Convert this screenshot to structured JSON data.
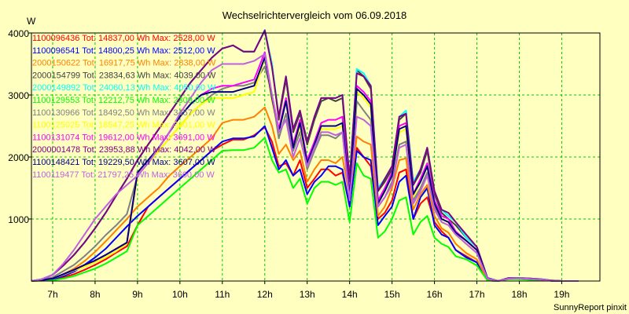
{
  "chart_data": {
    "type": "line",
    "title": "Wechselrichtervergleich vom 06.09.2018",
    "ylabel": "W",
    "xlabel": "",
    "footer": "SunnyReport pinxit",
    "x_tick_labels": [
      "7h",
      "8h",
      "9h",
      "10h",
      "11h",
      "12h",
      "13h",
      "14h",
      "15h",
      "16h",
      "17h",
      "18h",
      "19h"
    ],
    "y_tick_labels": [
      "1000",
      "2000",
      "3000",
      "4000"
    ],
    "x_ticks": [
      7,
      8,
      9,
      10,
      11,
      12,
      13,
      14,
      15,
      16,
      17,
      18,
      19
    ],
    "y_ticks": [
      1000,
      2000,
      3000,
      4000
    ],
    "xlim": [
      6.5,
      19.9
    ],
    "ylim": [
      0,
      4000
    ],
    "grid": true,
    "legend_position": "top-left",
    "colors": {
      "background": "#FFFFC0",
      "plot_background": "#FFFFC0",
      "grid": "#00CC00"
    },
    "x": [
      6.5,
      6.75,
      7,
      7.25,
      7.5,
      7.75,
      8,
      8.25,
      8.5,
      8.75,
      9,
      9.25,
      9.5,
      9.75,
      10,
      10.25,
      10.5,
      10.75,
      11,
      11.25,
      11.5,
      11.75,
      12,
      12.17,
      12.33,
      12.5,
      12.67,
      12.83,
      13,
      13.17,
      13.33,
      13.5,
      13.67,
      13.83,
      14,
      14.17,
      14.33,
      14.5,
      14.67,
      14.83,
      15,
      15.17,
      15.33,
      15.5,
      15.67,
      15.83,
      16,
      16.17,
      16.33,
      16.5,
      16.75,
      17,
      17.25,
      17.5,
      17.75,
      18,
      18.25,
      18.5,
      18.75,
      19,
      19.25,
      19.4
    ],
    "series": [
      {
        "legend": "1100096436 Tot: 14837,00 Wh Max: 2528,00 W",
        "color": "#FF0000",
        "values": [
          0,
          10,
          20,
          60,
          110,
          180,
          260,
          350,
          460,
          560,
          900,
          1200,
          1350,
          1500,
          1650,
          1800,
          1950,
          2100,
          2200,
          2280,
          2280,
          2350,
          2480,
          2250,
          1850,
          1900,
          1700,
          1950,
          1500,
          1650,
          1800,
          1800,
          1700,
          1750,
          1200,
          2150,
          2000,
          1850,
          1000,
          1100,
          1300,
          1750,
          1800,
          1000,
          1250,
          1350,
          950,
          800,
          700,
          500,
          400,
          300,
          20,
          0,
          40,
          40,
          30,
          20,
          5,
          0,
          0,
          0
        ]
      },
      {
        "legend": "1100096541 Tot: 14800,25 Wh Max: 2512,00 W",
        "color": "#0000FF",
        "values": [
          0,
          10,
          30,
          80,
          150,
          260,
          380,
          520,
          700,
          880,
          1050,
          1200,
          1350,
          1500,
          1650,
          1800,
          1950,
          2100,
          2250,
          2300,
          2300,
          2330,
          2500,
          2150,
          1800,
          1950,
          1700,
          1800,
          1400,
          1600,
          1700,
          1850,
          1850,
          1800,
          1200,
          2100,
          2000,
          1950,
          900,
          1050,
          1200,
          1600,
          1700,
          1000,
          1350,
          1500,
          900,
          750,
          700,
          500,
          380,
          300,
          10,
          0,
          40,
          40,
          30,
          20,
          5,
          0,
          0,
          0
        ]
      },
      {
        "legend": "2000150622 Tot: 16917,75 Wh Max: 2838,00 W",
        "color": "#FF8000",
        "values": [
          0,
          15,
          40,
          110,
          200,
          320,
          470,
          640,
          820,
          1000,
          1200,
          1350,
          1500,
          1700,
          1850,
          2000,
          2150,
          2300,
          2550,
          2600,
          2600,
          2650,
          2800,
          2500,
          2050,
          2200,
          1950,
          2100,
          1600,
          1800,
          1950,
          1950,
          1900,
          2000,
          1350,
          2330,
          2250,
          2200,
          1050,
          1200,
          1500,
          1950,
          1980,
          1150,
          1400,
          1550,
          1050,
          850,
          780,
          600,
          450,
          350,
          20,
          0,
          40,
          45,
          35,
          25,
          5,
          0,
          0,
          0
        ]
      },
      {
        "legend": "2000154799 Tot: 23834,63 Wh Max: 4039,00 W",
        "color": "#404040",
        "values": [
          0,
          30,
          100,
          250,
          420,
          620,
          850,
          1100,
          1380,
          1650,
          1950,
          2200,
          2450,
          2700,
          2950,
          3200,
          3400,
          3600,
          3750,
          3800,
          3700,
          3700,
          4040,
          3500,
          2600,
          3250,
          2400,
          2700,
          2200,
          2600,
          2900,
          2950,
          2900,
          2950,
          1600,
          3400,
          3300,
          3100,
          1450,
          1600,
          1800,
          2600,
          2700,
          1550,
          1750,
          2100,
          1400,
          1100,
          1000,
          900,
          700,
          550,
          50,
          0,
          50,
          50,
          40,
          30,
          10,
          0,
          0,
          0
        ]
      },
      {
        "legend": "2000149892 Tot: 24060,13 Wh Max: 4050,00 W",
        "color": "#00FFFF",
        "values": [
          0,
          30,
          100,
          250,
          420,
          620,
          850,
          1100,
          1380,
          1650,
          1950,
          2200,
          2450,
          2700,
          2950,
          3200,
          3400,
          3600,
          3750,
          3800,
          3700,
          3700,
          4050,
          3500,
          2650,
          3300,
          2450,
          2750,
          2250,
          2650,
          2950,
          2950,
          2950,
          3000,
          1650,
          3420,
          3350,
          3150,
          1500,
          1650,
          1850,
          2650,
          2750,
          1600,
          1800,
          2150,
          1450,
          1150,
          1050,
          950,
          700,
          550,
          50,
          0,
          50,
          50,
          40,
          30,
          10,
          0,
          0,
          0
        ]
      },
      {
        "legend": "1100129553 Tot: 12212,75 Wh Max: 2309,00 W",
        "color": "#00FF00",
        "values": [
          0,
          5,
          10,
          40,
          80,
          140,
          200,
          280,
          380,
          480,
          900,
          1050,
          1200,
          1350,
          1500,
          1650,
          1800,
          1950,
          2100,
          2110,
          2110,
          2150,
          2310,
          1950,
          1750,
          1800,
          1500,
          1650,
          1250,
          1500,
          1600,
          1600,
          1550,
          1600,
          950,
          1900,
          1700,
          1650,
          700,
          800,
          1000,
          1300,
          1350,
          750,
          950,
          1050,
          700,
          600,
          550,
          400,
          350,
          250,
          10,
          0,
          30,
          30,
          20,
          15,
          5,
          0,
          0,
          0
        ]
      },
      {
        "legend": "1100130966 Tot: 18492,50 Wh Max: 3457,00 W",
        "color": "#808080",
        "values": [
          0,
          20,
          60,
          160,
          260,
          400,
          560,
          740,
          900,
          1080,
          1700,
          1900,
          2100,
          2300,
          2500,
          2700,
          2850,
          3000,
          3100,
          3150,
          3150,
          3200,
          3460,
          3000,
          2300,
          2700,
          2100,
          2400,
          1800,
          2100,
          2350,
          2350,
          2300,
          2400,
          1300,
          2900,
          2750,
          2600,
          1200,
          1350,
          1600,
          2200,
          2250,
          1300,
          1500,
          1750,
          1200,
          950,
          900,
          750,
          600,
          450,
          40,
          0,
          40,
          45,
          35,
          25,
          5,
          0,
          0,
          0
        ]
      },
      {
        "legend": "1100125025 Tot: 18547,25 Wh Max: 3601,00 W",
        "color": "#FFFF00",
        "values": [
          0,
          15,
          40,
          100,
          170,
          230,
          300,
          380,
          480,
          600,
          1700,
          1900,
          2100,
          2300,
          2500,
          2700,
          2850,
          2950,
          2950,
          2950,
          3000,
          3050,
          3600,
          2900,
          2400,
          2900,
          2150,
          2500,
          1850,
          2150,
          2450,
          2450,
          2450,
          2500,
          1350,
          3050,
          2950,
          2800,
          1250,
          1450,
          1700,
          2400,
          2450,
          1350,
          1600,
          1850,
          1250,
          1000,
          950,
          780,
          650,
          500,
          40,
          0,
          40,
          45,
          35,
          25,
          5,
          0,
          0,
          0
        ]
      },
      {
        "legend": "1100131074 Tot: 19612,00 Wh Max: 3691,00 W",
        "color": "#FF00FF",
        "values": [
          0,
          15,
          40,
          110,
          180,
          260,
          330,
          420,
          520,
          620,
          1750,
          1950,
          2150,
          2400,
          2650,
          2850,
          3000,
          3100,
          3150,
          3150,
          3200,
          3250,
          3690,
          3000,
          2450,
          2950,
          2200,
          2600,
          1950,
          2250,
          2550,
          2600,
          2600,
          2650,
          1400,
          3150,
          3050,
          2900,
          1300,
          1500,
          1750,
          2500,
          2550,
          1400,
          1650,
          1900,
          1300,
          1050,
          1000,
          800,
          650,
          500,
          40,
          0,
          40,
          45,
          35,
          25,
          5,
          0,
          0,
          0
        ]
      },
      {
        "legend": "2000001478 Tot: 23953,88 Wh Max: 4042,00 W",
        "color": "#800080",
        "values": [
          0,
          30,
          100,
          250,
          420,
          620,
          850,
          1100,
          1380,
          1650,
          1950,
          2200,
          2450,
          2700,
          2950,
          3200,
          3400,
          3600,
          3750,
          3800,
          3700,
          3700,
          4042,
          3450,
          2650,
          3300,
          2450,
          2750,
          2250,
          2650,
          2950,
          2950,
          2950,
          3000,
          1650,
          3350,
          3300,
          3150,
          1450,
          1650,
          1850,
          2650,
          2700,
          1550,
          1800,
          2150,
          1450,
          1150,
          1100,
          950,
          750,
          550,
          50,
          0,
          50,
          50,
          40,
          30,
          10,
          0,
          0,
          0
        ]
      },
      {
        "legend": "1100148421 Tot: 19229,50 Wh Max: 3607,00 W",
        "color": "#000080",
        "values": [
          0,
          15,
          40,
          110,
          180,
          260,
          330,
          420,
          520,
          620,
          1750,
          1950,
          2150,
          2400,
          2650,
          2850,
          3000,
          3050,
          3050,
          3050,
          3100,
          3150,
          3607,
          2950,
          2400,
          2900,
          2150,
          2550,
          1900,
          2200,
          2500,
          2500,
          2500,
          2550,
          1350,
          3100,
          3000,
          2850,
          1250,
          1450,
          1700,
          2450,
          2500,
          1400,
          1600,
          1850,
          1250,
          1000,
          950,
          780,
          650,
          500,
          40,
          0,
          40,
          45,
          35,
          25,
          5,
          0,
          0,
          0
        ]
      },
      {
        "legend": "1100119477 Tot: 21797,25 Wh Max: 3660,00 W",
        "color": "#C060E0",
        "values": [
          0,
          30,
          100,
          280,
          500,
          750,
          1000,
          1200,
          1400,
          1550,
          1700,
          1900,
          2150,
          2400,
          2700,
          2950,
          3200,
          3400,
          3500,
          3500,
          3500,
          3550,
          3660,
          3000,
          2400,
          2600,
          2000,
          2300,
          1850,
          2150,
          2400,
          2400,
          2350,
          2400,
          1300,
          2650,
          2600,
          2500,
          1200,
          1350,
          1550,
          2150,
          2200,
          1250,
          1450,
          1700,
          1150,
          950,
          900,
          750,
          600,
          450,
          40,
          0,
          40,
          45,
          35,
          25,
          5,
          0,
          0,
          0
        ]
      }
    ]
  }
}
